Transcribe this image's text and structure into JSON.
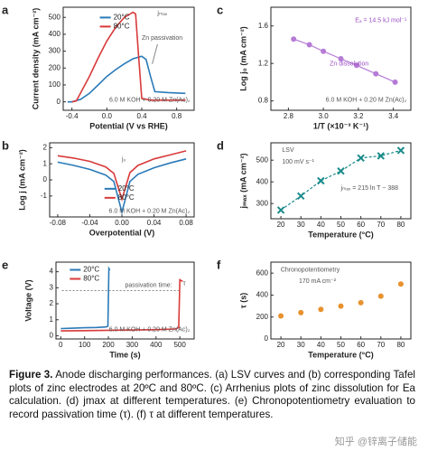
{
  "chart_data": [
    {
      "type": "line",
      "label": "a",
      "xlabel": "Potential (V vs RHE)",
      "ylabel": "Current density (mA cm⁻²)",
      "xlim": [
        -0.5,
        1.0
      ],
      "ylim": [
        -50,
        560
      ],
      "xticks": [
        -0.4,
        {
          "value": 0,
          "label": "0.0"
        },
        0.4,
        0.8
      ],
      "yticks": [
        0,
        100,
        200,
        300,
        400,
        500
      ],
      "legend": true,
      "series": [
        {
          "name": "20°C",
          "color": "#2a7ab8",
          "x": [
            -0.45,
            -0.4,
            -0.3,
            -0.2,
            -0.1,
            0.0,
            0.1,
            0.2,
            0.3,
            0.4,
            0.45,
            0.5,
            0.55,
            0.7,
            0.9
          ],
          "values": [
            0,
            0,
            15,
            50,
            100,
            150,
            190,
            225,
            255,
            270,
            250,
            150,
            60,
            55,
            50
          ]
        },
        {
          "name": "80°C",
          "color": "#d93a3a",
          "x": [
            -0.4,
            -0.35,
            -0.2,
            -0.1,
            0.0,
            0.1,
            0.2,
            0.3,
            0.33,
            0.36,
            0.4,
            0.5,
            0.7,
            0.9
          ],
          "values": [
            0,
            5,
            150,
            260,
            360,
            440,
            500,
            530,
            520,
            300,
            20,
            10,
            10,
            10
          ]
        }
      ],
      "annotations": [
        {
          "text": "jₘₐₓ"
        },
        {
          "text": "Zn passivation"
        },
        {
          "text": "6.0 M KOH + 0.20 M Zn(Ac)₂"
        }
      ]
    },
    {
      "type": "scatter",
      "label": "c",
      "xlabel": "1/T (×10⁻³ K⁻¹)",
      "ylabel": "Log j₀ (mA cm⁻²)",
      "xlim": [
        2.7,
        3.5
      ],
      "ylim": [
        0.7,
        1.8
      ],
      "xticks": [
        2.8,
        {
          "value": 3,
          "label": "3.0"
        },
        3.2,
        3.4
      ],
      "yticks": [
        0.8,
        1.2,
        1.6
      ],
      "color": "#b57bd6",
      "marker": "circle",
      "fit": "solid",
      "x": [
        2.83,
        2.92,
        3.0,
        3.1,
        3.19,
        3.3,
        3.41
      ],
      "values": [
        1.46,
        1.4,
        1.33,
        1.25,
        1.18,
        1.09,
        1.0
      ],
      "annotations": [
        {
          "text": "Eₐ = 14.5 kJ mol⁻¹",
          "color": "#9b4fc4"
        },
        {
          "text": "Zn dissolution",
          "color": "#9b4fc4"
        },
        {
          "text": "6.0 M KOH + 0.20 M Zn(Ac)₂"
        }
      ]
    },
    {
      "type": "line",
      "label": "b",
      "xlabel": "Overpotential (V)",
      "ylabel": "Log j (mA cm⁻²)",
      "xlim": [
        -0.09,
        0.09
      ],
      "ylim": [
        -2.3,
        2.3
      ],
      "xticks": [
        -0.08,
        -0.04,
        {
          "value": 0,
          "label": "0.00"
        },
        0.04,
        0.08
      ],
      "yticks": [
        -1,
        0,
        1,
        2
      ],
      "legend": true,
      "series": [
        {
          "name": "20°C",
          "color": "#2a7ab8",
          "x": [
            -0.08,
            -0.06,
            -0.04,
            -0.02,
            -0.01,
            0,
            0.01,
            0.02,
            0.04,
            0.06,
            0.08
          ],
          "values": [
            1.1,
            0.9,
            0.65,
            0.3,
            -0.1,
            -2.0,
            -0.1,
            0.35,
            0.75,
            1.05,
            1.3
          ]
        },
        {
          "name": "80°C",
          "color": "#d93a3a",
          "x": [
            -0.08,
            -0.06,
            -0.04,
            -0.02,
            -0.01,
            0,
            0.01,
            0.02,
            0.04,
            0.06,
            0.08
          ],
          "values": [
            1.5,
            1.35,
            1.15,
            0.8,
            0.4,
            -1.2,
            0.45,
            0.9,
            1.3,
            1.55,
            1.8
          ]
        }
      ],
      "annotations": [
        {
          "text": "j₀"
        },
        {
          "text": "6.0 M KOH + 0.20 M Zn(Ac)₂"
        }
      ]
    },
    {
      "type": "scatter",
      "label": "d",
      "xlabel": "Temperature (°C)",
      "ylabel": "jₘₐₓ (mA cm⁻²)",
      "xlim": [
        15,
        85
      ],
      "ylim": [
        230,
        580
      ],
      "xticks": [
        20,
        30,
        40,
        50,
        60,
        70,
        80
      ],
      "yticks": [
        300,
        400,
        500
      ],
      "color": "#1a8a8a",
      "marker": "cross",
      "fit": "dashed",
      "x": [
        20,
        30,
        40,
        50,
        60,
        70,
        80
      ],
      "values": [
        270,
        335,
        405,
        450,
        510,
        520,
        545
      ],
      "annotations": [
        {
          "text": "LSV"
        },
        {
          "text": "100 mV s⁻¹"
        },
        {
          "text": "jₘₐₓ = 215 ln T − 388"
        }
      ]
    },
    {
      "type": "line",
      "label": "e",
      "xlabel": "Time (s)",
      "ylabel": "Voltage (V)",
      "xlim": [
        -20,
        560
      ],
      "ylim": [
        -0.2,
        4.6
      ],
      "xticks": [
        0,
        100,
        200,
        300,
        400,
        500
      ],
      "yticks": [
        0,
        1,
        2,
        3,
        4
      ],
      "legend": true,
      "series": [
        {
          "name": "20°C",
          "color": "#2a7ab8",
          "x": [
            0,
            50,
            100,
            150,
            190,
            198,
            202,
            206
          ],
          "values": [
            0.45,
            0.47,
            0.5,
            0.52,
            0.55,
            0.6,
            4.2,
            4.1
          ]
        },
        {
          "name": "80°C",
          "color": "#d93a3a",
          "x": [
            0,
            100,
            200,
            300,
            400,
            480,
            495,
            500,
            512
          ],
          "values": [
            0.3,
            0.32,
            0.34,
            0.36,
            0.38,
            0.42,
            0.5,
            3.5,
            3.4
          ]
        }
      ],
      "annotations": [
        {
          "text": "passivation time:"
        },
        {
          "text": "τ"
        },
        {
          "text": "6.0 M KOH + 0.20 M Zn(Ac)₂"
        }
      ]
    },
    {
      "type": "scatter",
      "label": "f",
      "xlabel": "Temperature (°C)",
      "ylabel": "τ (s)",
      "xlim": [
        15,
        85
      ],
      "ylim": [
        0,
        700
      ],
      "xticks": [
        20,
        30,
        40,
        50,
        60,
        70,
        80
      ],
      "yticks": [
        0,
        200,
        400,
        600
      ],
      "color": "#e8912e",
      "marker": "circle",
      "x": [
        20,
        30,
        40,
        50,
        60,
        70,
        80
      ],
      "values": [
        210,
        240,
        270,
        300,
        330,
        390,
        500
      ],
      "annotations": [
        {
          "text": "Chronopotentiometry"
        },
        {
          "text": "170 mA cm⁻²"
        }
      ]
    }
  ],
  "caption": {
    "label": "Figure 3.",
    "text": "Anode discharging performances. (a) LSV curves and (b) corresponding Tafel plots of zinc electrodes at 20ºC and 80ºC. (c) Arrhenius plots of zinc dissolution for Ea calculation. (d) jmax at different temperatures. (e) Chronopotentiometry evaluation to record passivation time (τ). (f) τ at different temperatures."
  },
  "watermark": "知乎 @锌离子储能"
}
